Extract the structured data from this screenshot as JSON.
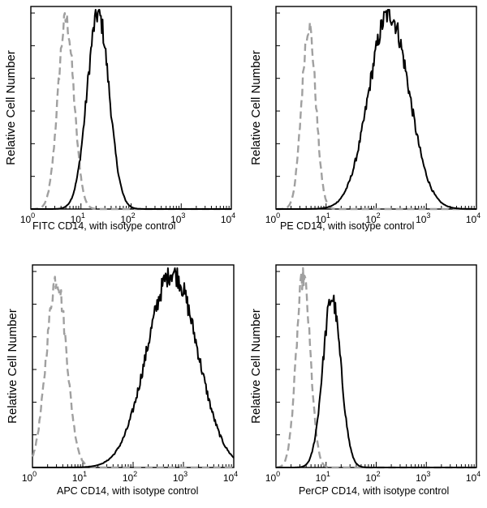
{
  "colors": {
    "background": "#ffffff",
    "axis": "#000000",
    "sample_series": "#000000",
    "isotype_series": "#a0a0a0"
  },
  "chart_data": [
    {
      "type": "line",
      "xscale": "log",
      "xlim": [
        1,
        10000
      ],
      "x_ticks": [
        {
          "base": "10",
          "exp": "0"
        },
        {
          "base": "10",
          "exp": "1"
        },
        {
          "base": "10",
          "exp": "2"
        },
        {
          "base": "10",
          "exp": "3"
        },
        {
          "base": "10",
          "exp": "4"
        }
      ],
      "ylabel": "Relative Cell Number",
      "xlabel": "FITC  CD14,  with isotype control",
      "series": [
        {
          "style": "dashed",
          "color": "#a0a0a0",
          "peak_x": 5,
          "width": 0.16,
          "peak": 0.95
        },
        {
          "style": "solid",
          "color": "#000000",
          "peak_x": 22,
          "width": 0.22,
          "peak": 0.98
        }
      ]
    },
    {
      "type": "line",
      "xscale": "log",
      "xlim": [
        1,
        10000
      ],
      "x_ticks": [
        {
          "base": "10",
          "exp": "0"
        },
        {
          "base": "10",
          "exp": "1"
        },
        {
          "base": "10",
          "exp": "2"
        },
        {
          "base": "10",
          "exp": "3"
        },
        {
          "base": "10",
          "exp": "4"
        }
      ],
      "ylabel": "Relative Cell Number",
      "xlabel": "PE CD14,  with isotype control",
      "series": [
        {
          "style": "dashed",
          "color": "#a0a0a0",
          "peak_x": 4.5,
          "width": 0.14,
          "peak": 0.92
        },
        {
          "style": "solid",
          "color": "#000000",
          "peak_x": 180,
          "width": 0.4,
          "peak": 0.98
        }
      ]
    },
    {
      "type": "line",
      "xscale": "log",
      "xlim": [
        1,
        10000
      ],
      "x_ticks": [
        {
          "base": "10",
          "exp": "0"
        },
        {
          "base": "10",
          "exp": "1"
        },
        {
          "base": "10",
          "exp": "2"
        },
        {
          "base": "10",
          "exp": "3"
        },
        {
          "base": "10",
          "exp": "4"
        }
      ],
      "ylabel": "Relative Cell Number",
      "xlabel": "APC CD14, with isotype control",
      "series": [
        {
          "style": "dashed",
          "color": "#a0a0a0",
          "peak_x": 3,
          "width": 0.2,
          "peak": 0.95
        },
        {
          "style": "solid",
          "color": "#000000",
          "peak_x": 600,
          "width": 0.5,
          "peak": 0.98
        }
      ]
    },
    {
      "type": "line",
      "xscale": "log",
      "xlim": [
        1,
        10000
      ],
      "x_ticks": [
        {
          "base": "10",
          "exp": "0"
        },
        {
          "base": "10",
          "exp": "1"
        },
        {
          "base": "10",
          "exp": "2"
        },
        {
          "base": "10",
          "exp": "3"
        },
        {
          "base": "10",
          "exp": "4"
        }
      ],
      "ylabel": "Relative Cell Number",
      "xlabel": "PerCP CD14, with isotype control",
      "series": [
        {
          "style": "dashed",
          "color": "#a0a0a0",
          "peak_x": 3.5,
          "width": 0.14,
          "peak": 0.96
        },
        {
          "style": "solid",
          "color": "#000000",
          "peak_x": 13,
          "width": 0.18,
          "peak": 0.85
        }
      ]
    }
  ]
}
